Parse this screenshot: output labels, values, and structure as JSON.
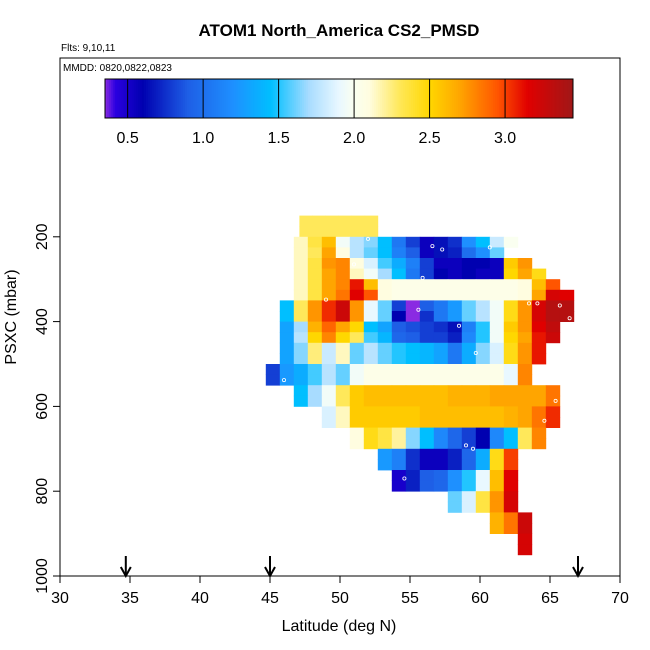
{
  "chart_data": {
    "type": "heatmap",
    "title": "ATOM1 North_America CS2_PMSD",
    "flights_label": "Flts: 9,10,11",
    "mmdd_label": "MMDD: 0820,0822,0823",
    "xlabel": "Latitude (deg N)",
    "ylabel": "PSXC (mbar)",
    "xlim": [
      30,
      70
    ],
    "ylim": [
      1000,
      0
    ],
    "x_ticks": [
      30,
      35,
      40,
      45,
      50,
      55,
      60,
      65,
      70
    ],
    "y_ticks": [
      200,
      400,
      600,
      800,
      1000
    ],
    "colorbar": {
      "range": [
        0.35,
        3.45
      ],
      "ticks": [
        0.5,
        1.0,
        1.5,
        2.0,
        2.5,
        3.0
      ],
      "tick_labels": [
        "0.5",
        "1.0",
        "1.5",
        "2.0",
        "2.5",
        "3.0"
      ],
      "stops": [
        {
          "v": 0.35,
          "c": "#8a2be2"
        },
        {
          "v": 0.42,
          "c": "#2a00e0"
        },
        {
          "v": 0.6,
          "c": "#0000b0"
        },
        {
          "v": 0.9,
          "c": "#1e5fe6"
        },
        {
          "v": 1.2,
          "c": "#1e90ff"
        },
        {
          "v": 1.45,
          "c": "#00bfff"
        },
        {
          "v": 1.7,
          "c": "#a8dcff"
        },
        {
          "v": 1.9,
          "c": "#e9f8ff"
        },
        {
          "v": 2.0,
          "c": "#fafff0"
        },
        {
          "v": 2.1,
          "c": "#fffde0"
        },
        {
          "v": 2.3,
          "c": "#ffe85a"
        },
        {
          "v": 2.5,
          "c": "#ffd700"
        },
        {
          "v": 2.7,
          "c": "#ffa500"
        },
        {
          "v": 2.95,
          "c": "#ff5500"
        },
        {
          "v": 3.15,
          "c": "#e00000"
        },
        {
          "v": 3.45,
          "c": "#a01818"
        }
      ]
    },
    "arrows_lat": [
      34.7,
      45.0,
      67.0
    ],
    "lat_edges": [
      46.7,
      47.7,
      48.7,
      49.7,
      50.7,
      51.7,
      52.7,
      53.7,
      54.7,
      55.7,
      56.7,
      57.7,
      58.7,
      59.7,
      60.7,
      61.7,
      62.7,
      63.7,
      64.7,
      65.7
    ],
    "rows": [
      {
        "p0": 150,
        "p1": 175,
        "values": [
          2.3,
          2.3,
          2.3,
          2.3,
          2.3,
          2.3
        ]
      },
      {
        "p0": 175,
        "p1": 200,
        "values": [
          2.3,
          2.3,
          2.3,
          2.3,
          2.3,
          2.3
        ]
      },
      {
        "p0": 200,
        "p1": 225,
        "values": [
          2.15,
          2.35,
          2.6,
          1.95,
          1.75,
          1.65,
          1.45,
          1.05,
          0.8,
          0.55,
          0.65,
          0.75,
          1.2,
          1.45,
          1.8,
          2.0
        ]
      },
      {
        "p0": 225,
        "p1": 250,
        "values": [
          2.15,
          2.3,
          2.7,
          2.1,
          1.75,
          1.6,
          1.45,
          1.1,
          0.9,
          0.55,
          0.65,
          0.7,
          1.0,
          1.2,
          1.6
        ]
      },
      {
        "p0": 250,
        "p1": 275,
        "values": [
          2.15,
          2.35,
          2.75,
          2.8,
          2.1,
          1.85,
          1.55,
          1.35,
          1.1,
          0.8,
          0.55,
          0.55,
          0.6,
          0.6,
          0.55,
          2.55,
          2.75
        ]
      },
      {
        "p0": 275,
        "p1": 300,
        "values": [
          2.15,
          2.35,
          2.7,
          2.8,
          2.15,
          1.95,
          1.7,
          1.45,
          1.05,
          0.8,
          0.6,
          0.55,
          0.6,
          0.55,
          0.55,
          2.5,
          2.7,
          2.45
        ]
      },
      {
        "p0": 300,
        "p1": 325,
        "values": [
          2.15,
          2.35,
          2.7,
          2.8,
          3.1,
          2.6,
          2.1,
          2.05,
          2.05,
          2.05,
          2.05,
          2.05,
          2.05,
          2.05,
          2.05,
          2.05,
          2.1,
          2.6,
          2.95
        ]
      },
      {
        "p0": 325,
        "p1": 350,
        "values": [
          2.15,
          2.35,
          2.7,
          2.85,
          3.15,
          2.95,
          2.1,
          2.05,
          2.05,
          2.05,
          2.05,
          2.05,
          2.05,
          2.05,
          2.05,
          2.05,
          2.1,
          2.7,
          3.2,
          3.15
        ]
      },
      {
        "p0": 350,
        "p1": 375,
        "values": [
          1.45,
          2.3,
          2.75,
          3.05,
          3.25,
          2.75,
          1.9,
          1.6,
          0.8,
          0.35,
          0.9,
          1.05,
          1.25,
          1.6,
          1.75,
          1.95,
          2.45,
          2.75,
          3.2,
          3.35,
          3.35
        ]
      },
      {
        "p0": 375,
        "p1": 400,
        "values": [
          1.45,
          2.3,
          2.75,
          3.05,
          3.25,
          2.75,
          1.9,
          1.6,
          0.6,
          0.35,
          0.75,
          1.05,
          1.25,
          1.6,
          1.75,
          1.95,
          2.45,
          2.75,
          3.2,
          3.35,
          3.35
        ]
      },
      {
        "p0": 400,
        "p1": 425,
        "values": [
          1.3,
          1.7,
          2.65,
          2.9,
          2.7,
          2.5,
          1.45,
          1.3,
          0.9,
          0.85,
          0.8,
          0.75,
          0.65,
          1.1,
          1.5,
          1.95,
          2.55,
          2.75,
          3.15,
          3.3
        ]
      },
      {
        "p0": 425,
        "p1": 450,
        "values": [
          1.3,
          1.75,
          2.5,
          2.8,
          2.5,
          2.3,
          1.55,
          1.4,
          0.95,
          0.9,
          0.8,
          0.8,
          0.7,
          1.15,
          1.5,
          1.95,
          2.5,
          2.7,
          3.1,
          3.25
        ]
      },
      {
        "p0": 450,
        "p1": 475,
        "values": [
          1.3,
          1.65,
          2.25,
          1.8,
          2.15,
          1.6,
          1.75,
          1.6,
          1.5,
          1.45,
          1.4,
          1.3,
          1.05,
          1.35,
          1.65,
          1.85,
          2.45,
          2.75,
          3.1
        ]
      },
      {
        "p0": 475,
        "p1": 500,
        "values": [
          1.3,
          1.65,
          2.25,
          1.8,
          2.15,
          1.6,
          1.75,
          1.6,
          1.5,
          1.45,
          1.4,
          1.3,
          1.05,
          1.35,
          1.65,
          1.85,
          2.45,
          2.75,
          3.1
        ]
      },
      {
        "p0": 500,
        "p1": 525,
        "values": [
          0.8,
          1.25,
          1.35,
          1.55,
          1.75,
          1.6,
          1.95,
          2.05,
          2.05,
          2.05,
          2.05,
          2.05,
          2.05,
          2.05,
          2.05,
          2.05,
          2.05,
          1.9,
          2.8
        ]
      },
      {
        "p0": 525,
        "p1": 550,
        "values": [
          0.8,
          1.25,
          1.35,
          1.55,
          1.75,
          1.6,
          1.95,
          2.05,
          2.05,
          2.05,
          2.05,
          2.05,
          2.05,
          2.05,
          2.05,
          2.05,
          2.05,
          1.9,
          2.8
        ]
      },
      {
        "p0": 550,
        "p1": 575,
        "values": [
          1.45,
          1.7,
          1.95,
          2.3,
          2.55,
          2.6,
          2.6,
          2.6,
          2.6,
          2.6,
          2.6,
          2.65,
          2.65,
          2.65,
          2.7,
          2.7,
          2.7,
          2.7,
          2.85
        ]
      },
      {
        "p0": 575,
        "p1": 600,
        "values": [
          1.45,
          1.7,
          1.95,
          2.3,
          2.55,
          2.6,
          2.6,
          2.6,
          2.6,
          2.6,
          2.6,
          2.65,
          2.65,
          2.65,
          2.7,
          2.7,
          2.7,
          2.7,
          2.85
        ]
      },
      {
        "p0": 600,
        "p1": 625,
        "values": [
          1.85,
          2.15,
          2.55,
          2.55,
          2.55,
          2.55,
          2.55,
          2.6,
          2.6,
          2.6,
          2.6,
          2.6,
          2.6,
          2.65,
          2.7,
          2.85,
          3.05
        ]
      },
      {
        "p0": 625,
        "p1": 650,
        "values": [
          1.85,
          2.15,
          2.55,
          2.55,
          2.55,
          2.55,
          2.55,
          2.6,
          2.6,
          2.6,
          2.6,
          2.6,
          2.6,
          2.65,
          2.7,
          2.85,
          3.05
        ]
      },
      {
        "p0": 650,
        "p1": 675,
        "values": [
          2.1,
          2.45,
          2.35,
          2.2,
          1.65,
          1.45,
          1.15,
          0.95,
          0.8,
          0.6,
          1.15,
          1.45,
          2.3,
          2.8
        ]
      },
      {
        "p0": 675,
        "p1": 700,
        "values": [
          2.1,
          2.45,
          2.35,
          2.2,
          1.65,
          1.45,
          1.15,
          0.95,
          0.8,
          0.6,
          1.15,
          1.45,
          2.3,
          2.8
        ]
      },
      {
        "p0": 700,
        "p1": 725,
        "values": [
          1.25,
          1.1,
          0.75,
          0.55,
          0.55,
          0.7,
          0.95,
          1.35,
          2.45,
          3.0
        ]
      },
      {
        "p0": 725,
        "p1": 750,
        "values": [
          1.25,
          1.1,
          0.75,
          0.55,
          0.55,
          0.7,
          0.95,
          1.35,
          2.45,
          3.0
        ]
      },
      {
        "p0": 750,
        "p1": 775,
        "values": [
          0.5,
          0.7,
          0.9,
          0.95,
          1.2,
          1.5,
          1.9,
          2.6,
          3.15
        ]
      },
      {
        "p0": 775,
        "p1": 800,
        "values": [
          0.5,
          0.7,
          0.9,
          0.95,
          1.2,
          1.5,
          1.9,
          2.6,
          3.15
        ]
      },
      {
        "p0": 800,
        "p1": 825,
        "values": [
          1.6,
          1.85,
          2.35,
          2.75,
          3.2
        ]
      },
      {
        "p0": 825,
        "p1": 850,
        "values": [
          1.6,
          1.85,
          2.35,
          2.75,
          3.2
        ]
      },
      {
        "p0": 850,
        "p1": 875,
        "values": [
          2.65,
          2.85,
          3.25
        ]
      },
      {
        "p0": 875,
        "p1": 900,
        "values": [
          2.65,
          2.85,
          3.25
        ]
      },
      {
        "p0": 900,
        "p1": 925,
        "values": [
          3.2
        ]
      },
      {
        "p0": 925,
        "p1": 950,
        "values": [
          3.2
        ]
      }
    ],
    "row_start_index": [
      0,
      0,
      0,
      0,
      0,
      0,
      0,
      0,
      -1,
      -1,
      -1,
      -1,
      -1,
      -1,
      -2,
      -2,
      0,
      0,
      2,
      2,
      4,
      4,
      6,
      6,
      7,
      7,
      11,
      11,
      14,
      14,
      16,
      16
    ],
    "points": [
      {
        "lat": 52.0,
        "p": 205
      },
      {
        "lat": 56.6,
        "p": 222
      },
      {
        "lat": 57.3,
        "p": 230
      },
      {
        "lat": 60.7,
        "p": 225
      },
      {
        "lat": 51.0,
        "p": 265
      },
      {
        "lat": 55.9,
        "p": 297
      },
      {
        "lat": 49.0,
        "p": 348
      },
      {
        "lat": 63.5,
        "p": 357
      },
      {
        "lat": 64.1,
        "p": 357
      },
      {
        "lat": 65.7,
        "p": 362
      },
      {
        "lat": 66.4,
        "p": 392
      },
      {
        "lat": 55.6,
        "p": 372
      },
      {
        "lat": 58.5,
        "p": 410
      },
      {
        "lat": 59.7,
        "p": 474
      },
      {
        "lat": 46.0,
        "p": 538
      },
      {
        "lat": 65.4,
        "p": 587
      },
      {
        "lat": 64.6,
        "p": 634
      },
      {
        "lat": 50.4,
        "p": 698
      },
      {
        "lat": 59.0,
        "p": 692
      },
      {
        "lat": 59.5,
        "p": 700
      },
      {
        "lat": 54.6,
        "p": 770
      },
      {
        "lat": 64.9,
        "p": 949
      }
    ]
  }
}
